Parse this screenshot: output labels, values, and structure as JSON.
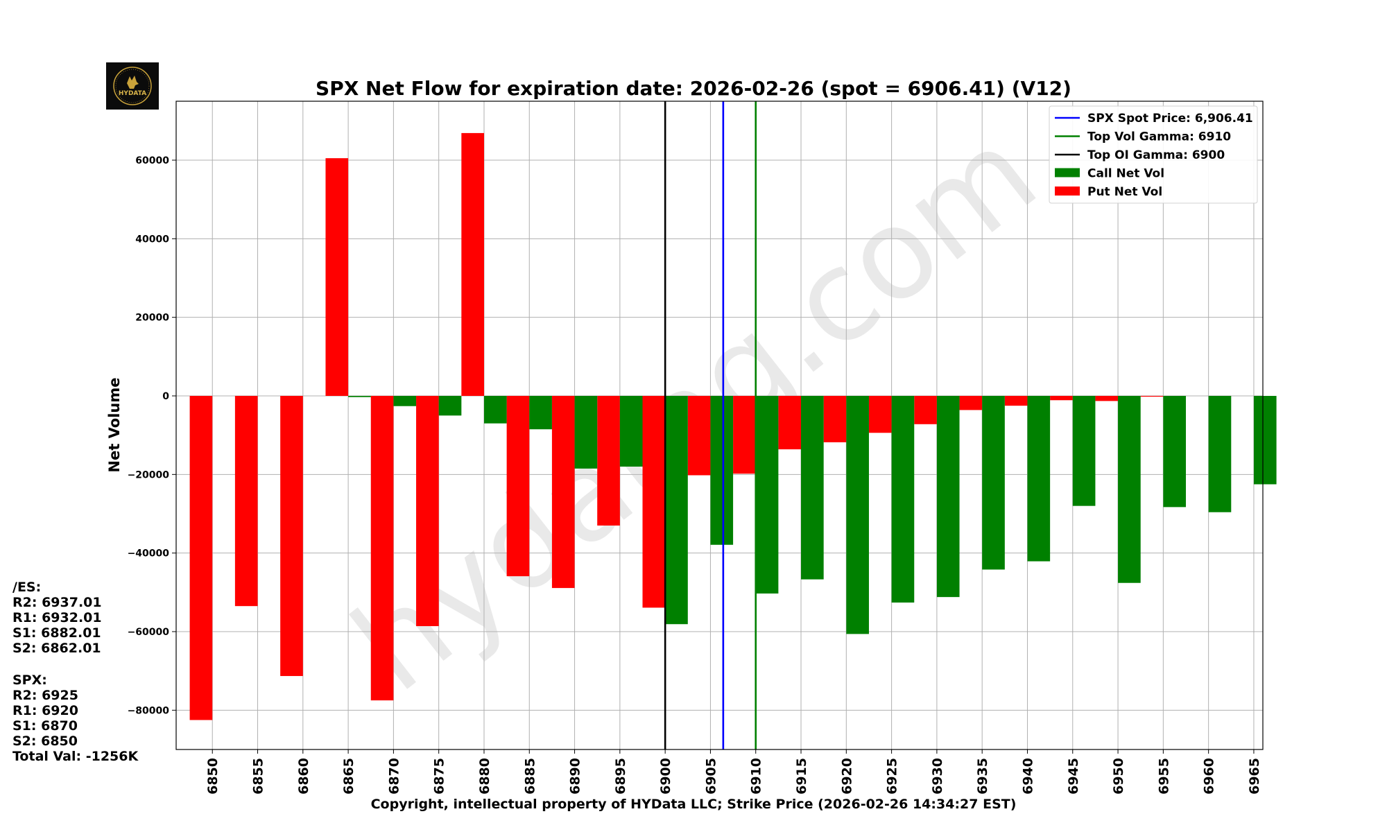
{
  "chart_data": {
    "type": "bar",
    "title": "SPX Net Flow for expiration date: 2026-02-26 (spot = 6906.41) (V12)",
    "xlabel": "Copyright, intellectual property of HYData LLC; Strike Price (2026-02-26 14:34:27 EST)",
    "ylabel": "Net Volume",
    "ylim": [
      -90000,
      75000
    ],
    "xlim": [
      6846,
      6966
    ],
    "yticks": [
      60000,
      40000,
      20000,
      0,
      -20000,
      -40000,
      -60000,
      -80000
    ],
    "ytick_labels": [
      "60000",
      "40000",
      "20000",
      "0",
      "−20000",
      "−40000",
      "−60000",
      "−80000"
    ],
    "categories": [
      6850,
      6855,
      6860,
      6865,
      6870,
      6875,
      6880,
      6885,
      6890,
      6895,
      6900,
      6905,
      6910,
      6915,
      6920,
      6925,
      6930,
      6935,
      6940,
      6945,
      6950,
      6955,
      6960,
      6965
    ],
    "series": [
      {
        "name": "Put Net Vol",
        "color": "#ff0000",
        "offset": -1.25,
        "values": [
          -82500,
          -53500,
          -71300,
          60500,
          -77500,
          -58600,
          66900,
          -45900,
          -48900,
          -33000,
          -53900,
          -20200,
          -19800,
          -13600,
          -11800,
          -9400,
          -7200,
          -3600,
          -2500,
          -1100,
          -1300,
          -200,
          0,
          0
        ]
      },
      {
        "name": "Call Net Vol",
        "color": "#008000",
        "offset": 1.25,
        "values": [
          0,
          0,
          0,
          -300,
          -2600,
          -5000,
          -7000,
          -8500,
          -18500,
          -18000,
          -58100,
          -37900,
          -50300,
          -46700,
          -60600,
          -52600,
          -51200,
          -44200,
          -42100,
          -28000,
          -47600,
          -28300,
          -29600,
          -22500
        ]
      }
    ],
    "vlines": [
      {
        "name": "Top OI Gamma",
        "value": 6900,
        "color": "#000000"
      },
      {
        "name": "SPX Spot Price",
        "value": 6906.41,
        "color": "#0000ff"
      },
      {
        "name": "Top Vol Gamma",
        "value": 6910,
        "color": "#008000"
      }
    ],
    "legend": {
      "position": "top-right",
      "entries": [
        {
          "label": "SPX Spot Price: 6,906.41",
          "kind": "line",
          "color": "#0000ff"
        },
        {
          "label": "Top Vol Gamma: 6910",
          "kind": "line",
          "color": "#008000"
        },
        {
          "label": "Top OI Gamma: 6900",
          "kind": "line",
          "color": "#000000"
        },
        {
          "label": "Call Net Vol",
          "kind": "patch",
          "color": "#008000"
        },
        {
          "label": "Put Net Vol",
          "kind": "patch",
          "color": "#ff0000"
        }
      ]
    },
    "watermark": "hydatag.com",
    "grid": true
  },
  "logo": {
    "text": "HYDATA"
  },
  "levels": {
    "es_title": "/ES:",
    "es": [
      "R2: 6937.01",
      "R1: 6932.01",
      "S1: 6882.01",
      "S2: 6862.01"
    ],
    "spx_title": "SPX:",
    "spx": [
      "R2: 6925",
      "R1: 6920",
      "S1: 6870",
      "S2: 6850"
    ],
    "total": "Total Val: -1256K"
  }
}
